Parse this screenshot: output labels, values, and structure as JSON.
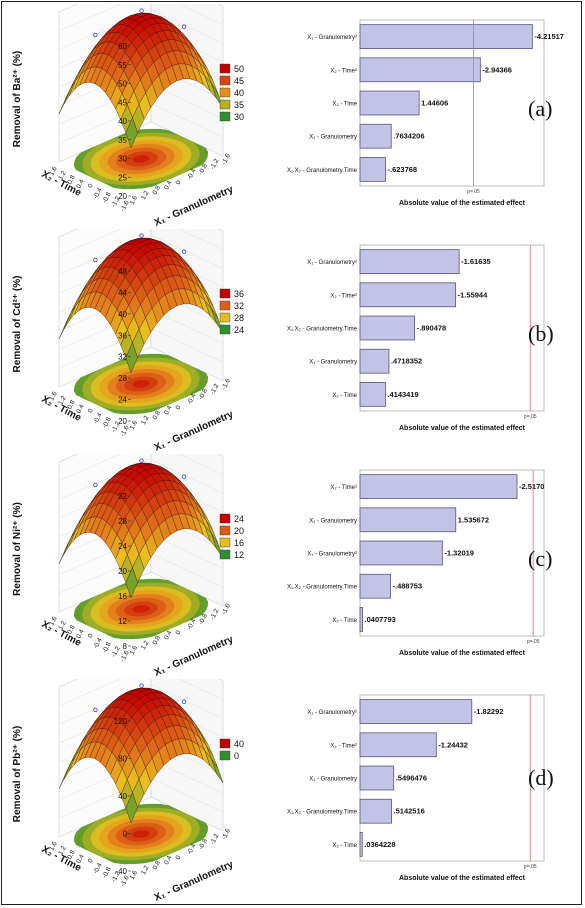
{
  "colors": {
    "bar_fill": "#c3c3e8",
    "bar_stroke": "#55557a",
    "sig_line": "#e07070",
    "surface_high": "#c40000",
    "surface_mid": "#e8c020",
    "surface_low": "#2f8f2f"
  },
  "common": {
    "pareto_xlabel": "Absolute value of the estimated effect",
    "p_label": "p=.05",
    "y_axis_time": "X₂ - Time",
    "x_axis_gran": "X₁ - Granulometry",
    "tick_labels": [
      "1.6",
      "1.2",
      "0.8",
      "0.4",
      "0",
      "-0.4",
      "-0.8",
      "-1.2",
      "-1.6"
    ]
  },
  "chart_data": [
    {
      "type": "bar",
      "panel": "(a)",
      "zlabel": "Removal of Ba²⁺ (%)",
      "zticks": [
        "20",
        "25",
        "30",
        "35",
        "40",
        "45",
        "50",
        "55",
        "60"
      ],
      "legend": [
        "50",
        "45",
        "40",
        "35",
        "30"
      ],
      "categories": [
        "X₁ - Granulometry²",
        "X₂ - Time²",
        "X₂ - Time",
        "X₁ - Granulometry",
        "X₁.X₂ - Granulometry.Time"
      ],
      "values": [
        -4.21517,
        -2.94366,
        1.44606,
        0.7634206,
        -0.623768
      ],
      "value_labels": [
        "-4.21517",
        "-2.94366",
        "1.44606",
        ".7634206",
        "-.623768"
      ],
      "p_value_effect": 2.776,
      "xlim": [
        0,
        4.5
      ]
    },
    {
      "type": "bar",
      "panel": "(b)",
      "zlabel": "Removal of Cd²⁺ (%)",
      "zticks": [
        "20",
        "24",
        "28",
        "32",
        "36",
        "40",
        "44",
        "48"
      ],
      "legend": [
        "36",
        "32",
        "28",
        "24"
      ],
      "categories": [
        "X₁ - Granulometry²",
        "X₂ - Time²",
        "X₁.X₂ - Granulometry.Time",
        "X₁ - Granulometry",
        "X₂ - Time"
      ],
      "values": [
        -1.61635,
        -1.55944,
        -0.890478,
        0.4718352,
        0.4143419
      ],
      "value_labels": [
        "-1.61635",
        "-1.55944",
        "-.890478",
        ".4718352",
        ".4143419"
      ],
      "p_value_effect": 2.776,
      "xlim": [
        0,
        3.0
      ]
    },
    {
      "type": "bar",
      "panel": "(c)",
      "zlabel": "Removal of Ni²⁺ (%)",
      "zticks": [
        "8",
        "12",
        "16",
        "20",
        "24",
        "28",
        "32"
      ],
      "legend": [
        "24",
        "20",
        "16",
        "12"
      ],
      "categories": [
        "X₂ - Time²",
        "X₁ - Granulometry",
        "X₁ - Granulometry²",
        "X₁.X₂ - Granulometry.Time",
        "X₂ - Time"
      ],
      "values": [
        -2.517,
        1.535672,
        -1.32019,
        -0.488753,
        0.0407793
      ],
      "value_labels": [
        "-2.5170",
        "1.535672",
        "-1.32019",
        "-.488753",
        ".0407793"
      ],
      "p_value_effect": 2.776,
      "xlim": [
        0,
        2.95
      ]
    },
    {
      "type": "bar",
      "panel": "(d)",
      "zlabel": "Removal of Pb²⁺ (%)",
      "zticks": [
        "-40",
        "0",
        "40",
        "80",
        "120"
      ],
      "legend": [
        "40",
        "0"
      ],
      "categories": [
        "X₁ - Granulometry²",
        "X₂ - Time²",
        "X₁ - Granulometry",
        "X₁.X₂ - Granulometry.Time",
        "X₂ - Time"
      ],
      "values": [
        -1.82292,
        -1.24432,
        0.5496476,
        0.5142516,
        0.0364228
      ],
      "value_labels": [
        "-1.82292",
        "-1.24432",
        ".5496476",
        ".5142516",
        ".0364228"
      ],
      "p_value_effect": 2.776,
      "xlim": [
        0,
        3.0
      ]
    }
  ]
}
